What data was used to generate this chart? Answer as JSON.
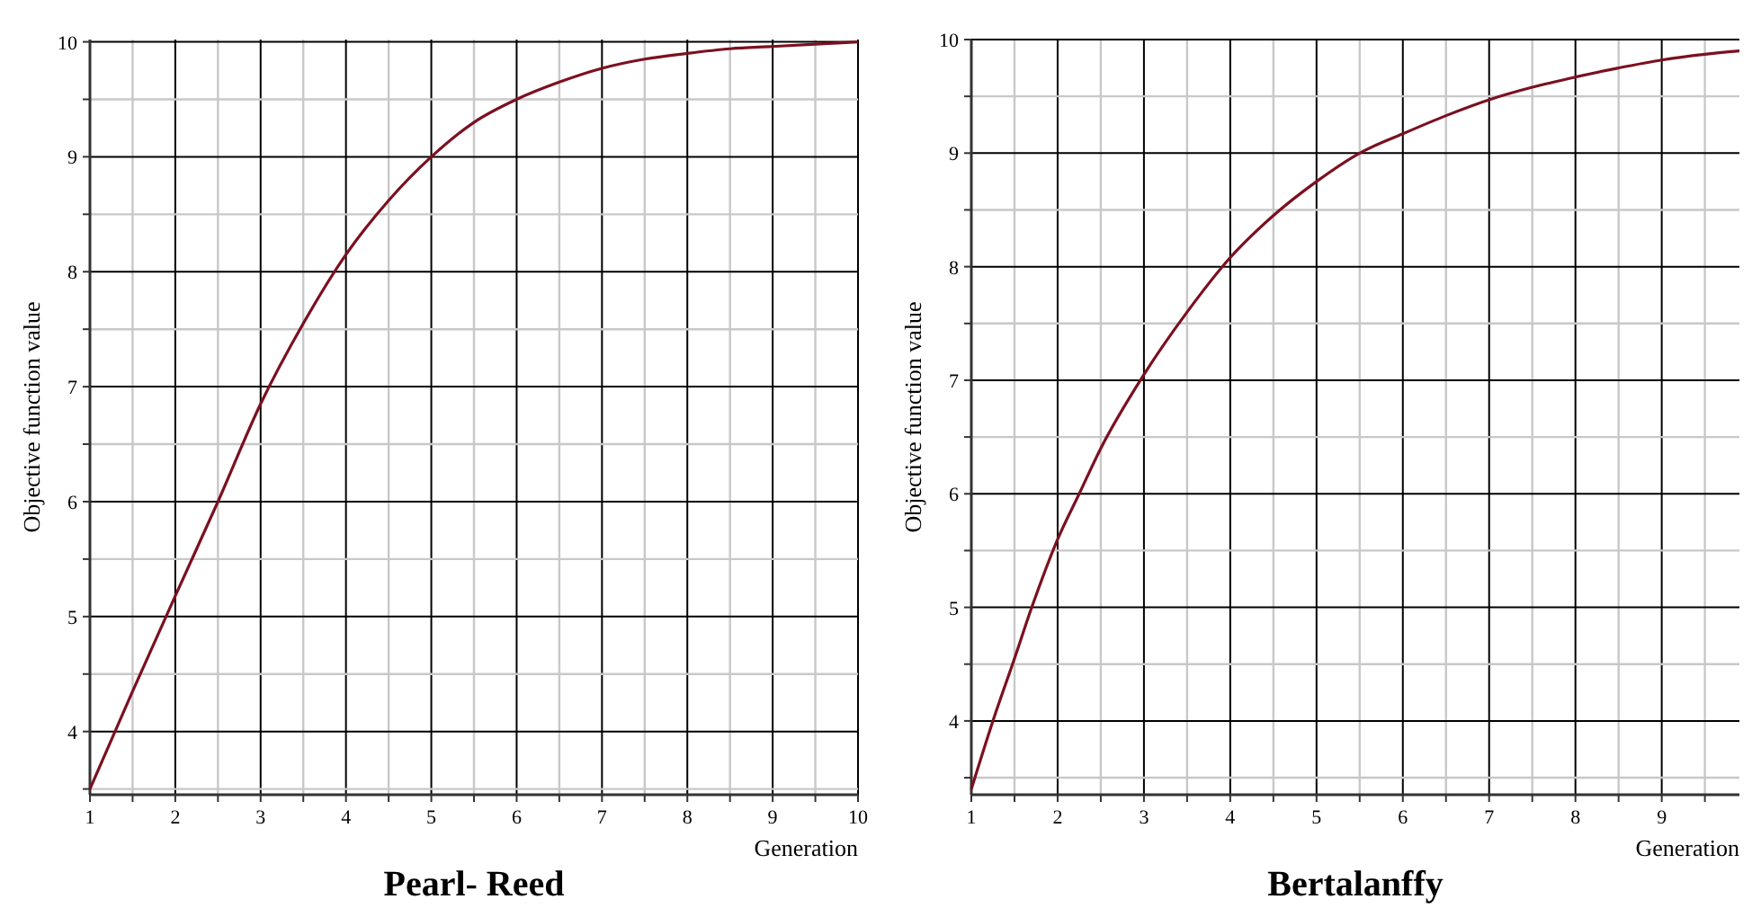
{
  "chart_data": [
    {
      "type": "line",
      "title": "Pearl- Reed",
      "xlabel": "Generation",
      "ylabel": "Objective function value",
      "xlim": [
        1,
        10
      ],
      "ylim": [
        3.45,
        10.02
      ],
      "grid": true,
      "marker": "none",
      "line_style": "solid",
      "xticks": [
        1,
        {
          "value": 1.5,
          "label": null
        },
        2,
        {
          "value": 2.5,
          "label": null
        },
        3,
        {
          "value": 3.5,
          "label": null
        },
        4,
        {
          "value": 4.5,
          "label": null
        },
        5,
        {
          "value": 5.5,
          "label": null
        },
        6,
        {
          "value": 6.5,
          "label": null
        },
        7,
        {
          "value": 7.5,
          "label": null
        },
        8,
        {
          "value": 8.5,
          "label": null
        },
        9,
        {
          "value": 9.5,
          "label": null
        },
        10
      ],
      "yticks": [
        {
          "value": 3.5,
          "label": null
        },
        4,
        {
          "value": 4.5,
          "label": null
        },
        5,
        {
          "value": 5.5,
          "label": null
        },
        6,
        {
          "value": 6.5,
          "label": null
        },
        7,
        {
          "value": 7.5,
          "label": null
        },
        8,
        {
          "value": 8.5,
          "label": null
        },
        9,
        {
          "value": 9.5,
          "label": null
        },
        10
      ],
      "x": [
        1,
        1.5,
        2,
        2.5,
        3,
        3.5,
        4,
        4.5,
        5,
        5.5,
        6,
        6.5,
        7,
        7.5,
        8,
        8.5,
        9,
        9.5,
        10
      ],
      "series": [
        {
          "color": "#7b1020",
          "values": [
            3.5,
            4.35,
            5.18,
            6.0,
            6.85,
            7.55,
            8.15,
            8.62,
            9.0,
            9.3,
            9.5,
            9.65,
            9.77,
            9.85,
            9.9,
            9.94,
            9.96,
            9.98,
            10.0
          ]
        }
      ]
    },
    {
      "type": "line",
      "title": "Bertalanffy",
      "xlabel": "Generation",
      "ylabel": "Objective function value",
      "xlim": [
        1,
        9.9
      ],
      "ylim": [
        3.35,
        10
      ],
      "grid": true,
      "marker": "none",
      "line_style": "solid",
      "xticks": [
        1,
        {
          "value": 1.5,
          "label": null
        },
        2,
        {
          "value": 2.5,
          "label": null
        },
        3,
        {
          "value": 3.5,
          "label": null
        },
        4,
        {
          "value": 4.5,
          "label": null
        },
        5,
        {
          "value": 5.5,
          "label": null
        },
        6,
        {
          "value": 6.5,
          "label": null
        },
        7,
        {
          "value": 7.5,
          "label": null
        },
        8,
        {
          "value": 8.5,
          "label": null
        },
        9,
        {
          "value": 9.5,
          "label": null
        }
      ],
      "yticks": [
        {
          "value": 3.5,
          "label": null
        },
        4,
        {
          "value": 4.5,
          "label": null
        },
        5,
        {
          "value": 5.5,
          "label": null
        },
        6,
        {
          "value": 6.5,
          "label": null
        },
        7,
        {
          "value": 7.5,
          "label": null
        },
        8,
        {
          "value": 8.5,
          "label": null
        },
        9,
        {
          "value": 9.5,
          "label": null
        },
        10
      ],
      "x": [
        1,
        1.25,
        1.5,
        1.7,
        2,
        2.25,
        2.5,
        3,
        3.5,
        4,
        4.5,
        5,
        5.5,
        6,
        6.5,
        7,
        7.5,
        8,
        8.5,
        9,
        9.5,
        9.9
      ],
      "series": [
        {
          "color": "#7b1020",
          "values": [
            3.4,
            4.0,
            4.55,
            5.0,
            5.6,
            6.0,
            6.4,
            7.05,
            7.6,
            8.08,
            8.45,
            8.75,
            9.0,
            9.17,
            9.33,
            9.47,
            9.58,
            9.67,
            9.75,
            9.82,
            9.87,
            9.9
          ]
        }
      ]
    }
  ]
}
